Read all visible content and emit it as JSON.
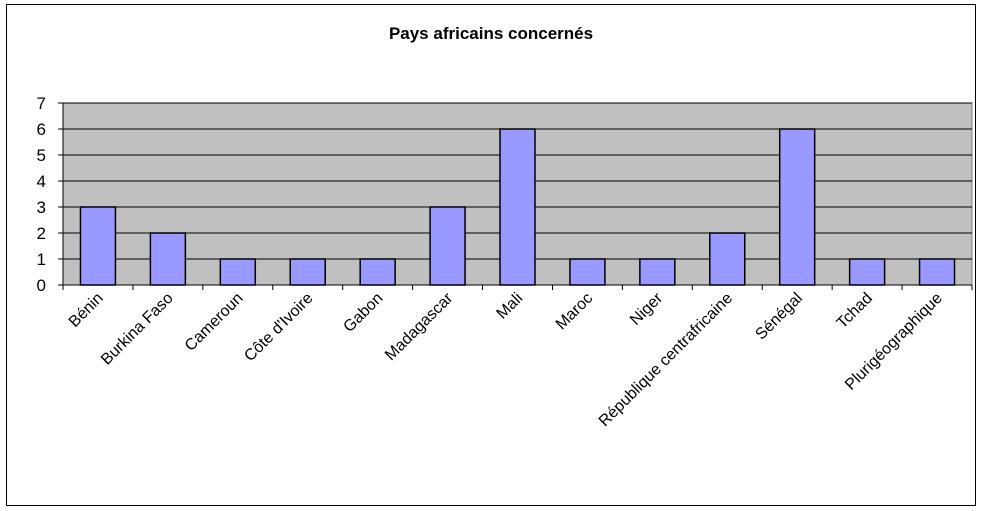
{
  "chart_data": {
    "type": "bar",
    "title": "Pays africains concernés",
    "xlabel": "",
    "ylabel": "",
    "categories": [
      "Bénin",
      "Burkina Faso",
      "Cameroun",
      "Côte d'Ivoire",
      "Gabon",
      "Madagascar",
      "Mali",
      "Maroc",
      "Niger",
      "République centrafricaine",
      "Sénégal",
      "Tchad",
      "Plurigéographique"
    ],
    "values": [
      3,
      2,
      1,
      1,
      1,
      3,
      6,
      1,
      1,
      2,
      6,
      1,
      1
    ],
    "ylim": [
      0,
      7
    ],
    "yticks": [
      "0",
      "1",
      "2",
      "3",
      "4",
      "5",
      "6",
      "7"
    ],
    "grid": true,
    "legend": "none",
    "colors": {
      "bar_fill": "#9999ff",
      "bar_stroke": "#000000",
      "plot_background": "#c0c0c0",
      "gridline": "#000000"
    }
  }
}
